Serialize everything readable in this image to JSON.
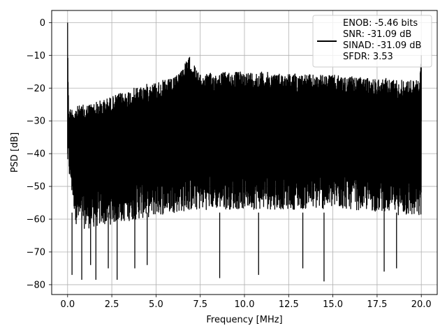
{
  "chart_data": {
    "type": "line",
    "title": "",
    "xlabel": "Frequency [MHz]",
    "ylabel": "PSD [dB]",
    "xlim": [
      -0.9,
      20.9
    ],
    "ylim": [
      -83,
      3.7
    ],
    "x_ticks": [
      0.0,
      2.5,
      5.0,
      7.5,
      10.0,
      12.5,
      15.0,
      17.5,
      20.0
    ],
    "x_tick_labels": [
      "0.0",
      "2.5",
      "5.0",
      "7.5",
      "10.0",
      "12.5",
      "15.0",
      "17.5",
      "20.0"
    ],
    "y_ticks": [
      0,
      -10,
      -20,
      -30,
      -40,
      -50,
      -60,
      -70,
      -80
    ],
    "y_tick_labels": [
      "0",
      "−10",
      "−20",
      "−30",
      "−40",
      "−50",
      "−60",
      "−70",
      "−80"
    ],
    "grid": true,
    "legend_position": "top-right",
    "line_color": "#000000",
    "series": [
      {
        "name": "ENOB: -5.46 bits\nSNR: -31.09 dB\nSINAD: -31.09 dB\nSFDR: 3.53",
        "legend_lines": [
          "ENOB: -5.46 bits",
          "SNR: -31.09 dB",
          "SINAD: -31.09 dB",
          "SFDR: 3.53"
        ],
        "x_range": [
          0.0,
          20.0
        ],
        "upper_envelope": {
          "x": [
            0.0,
            0.05,
            0.1,
            0.5,
            1.0,
            2.0,
            3.0,
            4.0,
            5.0,
            6.0,
            6.9,
            7.5,
            8.0,
            9.0,
            10.0,
            11.0,
            12.0,
            13.0,
            14.0,
            15.0,
            16.0,
            17.0,
            18.0,
            19.0,
            19.9,
            20.0
          ],
          "y": [
            0.0,
            -23,
            -26,
            -25.5,
            -25,
            -23.5,
            -21.5,
            -19.5,
            -18,
            -17,
            -10.5,
            -16,
            -15.5,
            -15,
            -15,
            -15,
            -15.5,
            -15.5,
            -16,
            -16,
            -16.5,
            -17,
            -17,
            -17.5,
            -17.5,
            -10
          ]
        },
        "lower_envelope": {
          "x": [
            0.0,
            0.5,
            1.0,
            2.0,
            3.0,
            4.0,
            5.0,
            6.0,
            8.0,
            10.0,
            12.0,
            14.0,
            16.0,
            18.0,
            20.0
          ],
          "y": [
            -45,
            -62,
            -63,
            -62,
            -61,
            -60,
            -59,
            -58,
            -57,
            -57,
            -57,
            -57,
            -57,
            -58,
            -60
          ]
        },
        "deep_dips": {
          "x": [
            0.25,
            0.8,
            1.3,
            1.6,
            2.3,
            2.8,
            3.8,
            4.5,
            8.6,
            10.8,
            13.3,
            14.5,
            17.9,
            18.6
          ],
          "y": [
            -77,
            -78.5,
            -74,
            -78.5,
            -75,
            -78.5,
            -75,
            -74,
            -78,
            -77,
            -75,
            -79,
            -76,
            -75
          ]
        }
      }
    ]
  }
}
